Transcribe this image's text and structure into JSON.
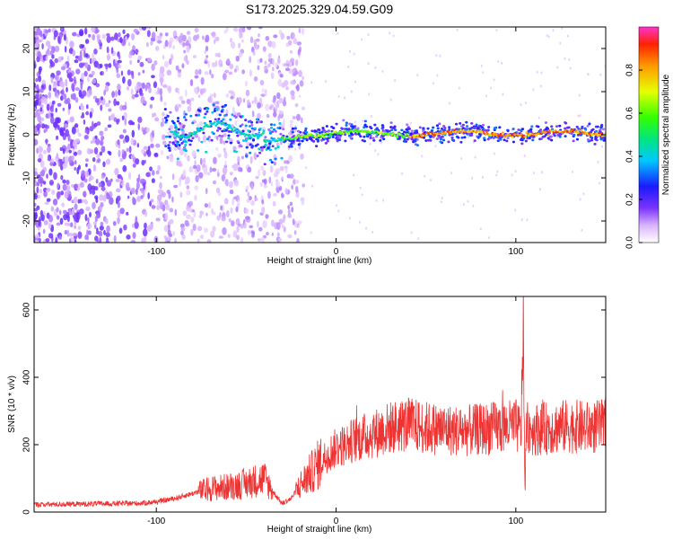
{
  "title": "S173.2025.329.04.59.G09",
  "chart_data": [
    {
      "type": "heatmap",
      "name": "spectrogram",
      "xlabel": "Height of straight line (km)",
      "ylabel": "Frequency (Hz)",
      "xlim": [
        -168,
        150
      ],
      "ylim": [
        -25,
        25
      ],
      "xticks": [
        -100,
        0,
        100
      ],
      "xtick_labels": [
        "-100",
        "0",
        "100"
      ],
      "yticks": [
        -20,
        -10,
        0,
        10,
        20
      ],
      "ytick_labels": [
        "-20",
        "-10",
        "0",
        "10",
        "20"
      ],
      "colorbar": {
        "label": "Normalized spectral amplitude",
        "range": [
          0,
          1
        ],
        "ticks": [
          0,
          0.2,
          0.4,
          0.6,
          0.8
        ],
        "tick_labels": [
          "0.0",
          "0.2",
          "0.4",
          "0.6",
          "0.8"
        ]
      }
    },
    {
      "type": "line",
      "name": "snr",
      "xlabel": "Height of straight line (km)",
      "ylabel": "SNR (10 * v/v)",
      "xlim": [
        -168,
        150
      ],
      "ylim": [
        0,
        640
      ],
      "xticks": [
        -100,
        0,
        100
      ],
      "xtick_labels": [
        "-100",
        "0",
        "100"
      ],
      "yticks": [
        0,
        200,
        400,
        600
      ],
      "ytick_labels": [
        "0",
        "200",
        "400",
        "600"
      ],
      "color": "#ee3333",
      "series": [
        {
          "name": "SNR",
          "x": [
            -168,
            -140,
            -110,
            -100,
            -90,
            -80,
            -70,
            -60,
            -50,
            -40,
            -35,
            -30,
            -25,
            -20,
            -15,
            -10,
            -5,
            0,
            5,
            10,
            20,
            30,
            40,
            50,
            60,
            70,
            80,
            90,
            100,
            103,
            104,
            105,
            106,
            107,
            110,
            120,
            130,
            140,
            150
          ],
          "values": [
            22,
            24,
            26,
            30,
            40,
            55,
            70,
            75,
            85,
            100,
            60,
            25,
            40,
            80,
            110,
            140,
            170,
            190,
            200,
            215,
            230,
            250,
            260,
            250,
            245,
            240,
            245,
            250,
            255,
            240,
            600,
            90,
            240,
            250,
            245,
            250,
            255,
            250,
            255
          ]
        }
      ]
    }
  ]
}
